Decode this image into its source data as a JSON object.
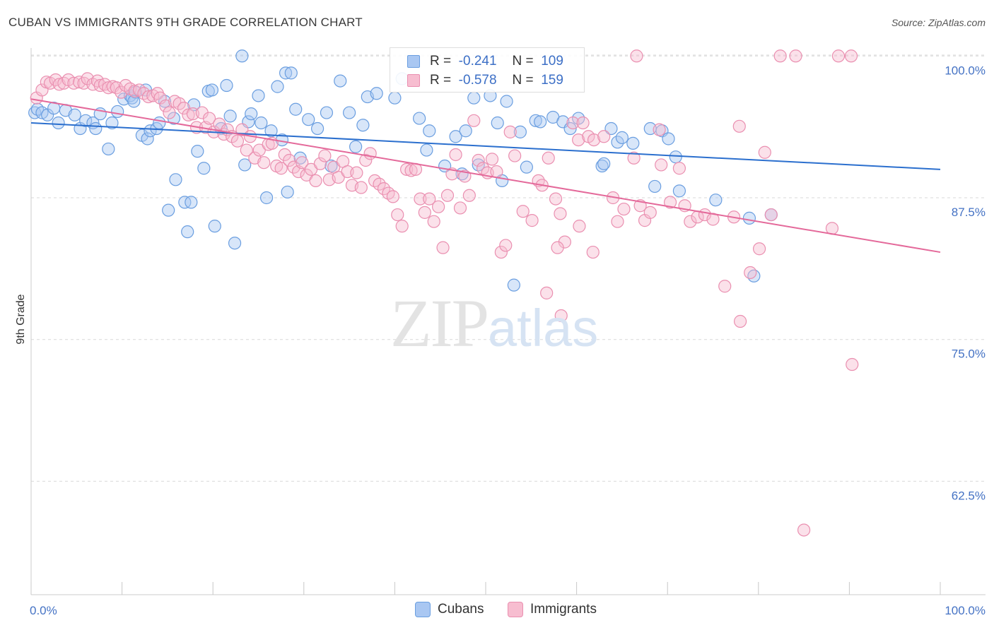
{
  "header": {
    "title": "CUBAN VS IMMIGRANTS 9TH GRADE CORRELATION CHART",
    "source": "Source: ZipAtlas.com"
  },
  "watermark": {
    "zip": "ZIP",
    "atlas": "atlas"
  },
  "legend_top": {
    "rows": [
      {
        "r_label": "R =",
        "r_value": "-0.241",
        "n_label": "N =",
        "n_value": "109"
      },
      {
        "r_label": "R =",
        "r_value": "-0.578",
        "n_label": "N =",
        "n_value": "159"
      }
    ]
  },
  "legend_bottom": {
    "items": [
      {
        "label": "Cubans"
      },
      {
        "label": "Immigrants"
      }
    ]
  },
  "colors": {
    "cubans_fill": "#a9c7f2",
    "cubans_stroke": "#6a9ee0",
    "cubans_line": "#2b6fce",
    "immigrants_fill": "#f7bdd0",
    "immigrants_stroke": "#ea8fb0",
    "immigrants_line": "#e4699a",
    "grid": "#d9d9d9",
    "tick_text": "#4472c4"
  },
  "chart_data": {
    "type": "scatter",
    "title": "CUBAN VS IMMIGRANTS 9TH GRADE CORRELATION CHART",
    "xlabel": "",
    "ylabel": "9th Grade",
    "xlim": [
      0,
      100
    ],
    "ylim": [
      52.5,
      101.2
    ],
    "x_tick_labels": [
      "0.0%",
      "100.0%"
    ],
    "y_ticks": [
      62.5,
      75.0,
      87.5,
      100.0
    ],
    "y_tick_labels": [
      "62.5%",
      "75.0%",
      "87.5%",
      "100.0%"
    ],
    "grid": true,
    "legend_position": "top-center",
    "series": [
      {
        "name": "Cubans",
        "r": -0.241,
        "n": 109,
        "trend": {
          "x": [
            0,
            100
          ],
          "y": [
            94.1,
            90.0
          ]
        },
        "points": [
          [
            0.4,
            95.0
          ],
          [
            0.7,
            95.3
          ],
          [
            1.2,
            95.0
          ],
          [
            1.8,
            94.8
          ],
          [
            2.5,
            95.4
          ],
          [
            3.0,
            94.1
          ],
          [
            3.8,
            95.2
          ],
          [
            4.8,
            94.8
          ],
          [
            5.4,
            93.6
          ],
          [
            6.0,
            94.3
          ],
          [
            6.8,
            94.1
          ],
          [
            7.1,
            93.6
          ],
          [
            7.6,
            94.9
          ],
          [
            8.5,
            91.8
          ],
          [
            8.9,
            94.1
          ],
          [
            9.5,
            95.1
          ],
          [
            10.2,
            96.2
          ],
          [
            10.9,
            96.5
          ],
          [
            11.1,
            96.3
          ],
          [
            11.5,
            96.8
          ],
          [
            11.3,
            96.0
          ],
          [
            12.2,
            93.0
          ],
          [
            12.6,
            97.0
          ],
          [
            12.8,
            92.7
          ],
          [
            13.1,
            93.4
          ],
          [
            13.8,
            93.6
          ],
          [
            14.1,
            94.1
          ],
          [
            14.7,
            96.0
          ],
          [
            15.1,
            86.4
          ],
          [
            15.7,
            94.5
          ],
          [
            15.9,
            89.1
          ],
          [
            16.9,
            87.1
          ],
          [
            17.2,
            84.5
          ],
          [
            17.6,
            87.1
          ],
          [
            17.9,
            95.7
          ],
          [
            18.3,
            91.6
          ],
          [
            19.0,
            90.1
          ],
          [
            19.5,
            96.9
          ],
          [
            19.9,
            97.0
          ],
          [
            20.2,
            85.0
          ],
          [
            20.9,
            93.6
          ],
          [
            21.5,
            97.4
          ],
          [
            21.9,
            94.7
          ],
          [
            22.4,
            83.5
          ],
          [
            23.2,
            100.0
          ],
          [
            23.5,
            90.4
          ],
          [
            23.9,
            94.2
          ],
          [
            24.2,
            94.9
          ],
          [
            25.0,
            96.5
          ],
          [
            25.3,
            94.1
          ],
          [
            25.9,
            87.5
          ],
          [
            26.4,
            93.4
          ],
          [
            27.1,
            97.3
          ],
          [
            27.6,
            92.6
          ],
          [
            28.0,
            98.5
          ],
          [
            28.2,
            88.0
          ],
          [
            28.6,
            98.5
          ],
          [
            29.1,
            95.3
          ],
          [
            29.6,
            91.0
          ],
          [
            30.5,
            94.4
          ],
          [
            31.5,
            93.6
          ],
          [
            32.5,
            95.0
          ],
          [
            33.0,
            90.3
          ],
          [
            34.0,
            97.8
          ],
          [
            35.0,
            95.0
          ],
          [
            35.7,
            92.0
          ],
          [
            36.5,
            93.9
          ],
          [
            37.0,
            96.4
          ],
          [
            38.0,
            96.7
          ],
          [
            40.0,
            96.3
          ],
          [
            40.8,
            98.0
          ],
          [
            42.7,
            94.5
          ],
          [
            43.5,
            91.7
          ],
          [
            43.8,
            93.4
          ],
          [
            45.5,
            90.3
          ],
          [
            46.7,
            92.9
          ],
          [
            47.4,
            89.6
          ],
          [
            47.8,
            93.4
          ],
          [
            48.7,
            96.3
          ],
          [
            49.2,
            90.4
          ],
          [
            50.5,
            96.5
          ],
          [
            51.3,
            94.1
          ],
          [
            51.8,
            89.0
          ],
          [
            52.3,
            96.0
          ],
          [
            53.1,
            79.8
          ],
          [
            53.8,
            93.3
          ],
          [
            54.5,
            90.2
          ],
          [
            55.5,
            94.3
          ],
          [
            56.0,
            94.2
          ],
          [
            57.4,
            94.6
          ],
          [
            58.5,
            94.2
          ],
          [
            59.3,
            93.6
          ],
          [
            60.2,
            94.5
          ],
          [
            62.8,
            90.3
          ],
          [
            63.0,
            90.5
          ],
          [
            63.8,
            93.6
          ],
          [
            64.5,
            92.4
          ],
          [
            65.0,
            92.8
          ],
          [
            66.2,
            92.3
          ],
          [
            68.1,
            93.6
          ],
          [
            68.6,
            88.5
          ],
          [
            69.4,
            93.4
          ],
          [
            70.1,
            92.7
          ],
          [
            70.9,
            91.1
          ],
          [
            71.3,
            88.1
          ],
          [
            75.3,
            87.3
          ],
          [
            79.0,
            85.7
          ],
          [
            79.5,
            80.6
          ],
          [
            81.4,
            86.0
          ]
        ]
      },
      {
        "name": "Immigrants",
        "r": -0.578,
        "n": 159,
        "trend": {
          "x": [
            0,
            100
          ],
          "y": [
            96.2,
            82.7
          ]
        },
        "points": [
          [
            0.6,
            96.3
          ],
          [
            1.2,
            97.0
          ],
          [
            1.7,
            97.7
          ],
          [
            2.1,
            97.6
          ],
          [
            2.7,
            97.9
          ],
          [
            3.1,
            97.5
          ],
          [
            3.6,
            97.6
          ],
          [
            4.1,
            97.9
          ],
          [
            4.7,
            97.6
          ],
          [
            5.3,
            97.7
          ],
          [
            5.8,
            97.6
          ],
          [
            6.2,
            98.0
          ],
          [
            6.8,
            97.5
          ],
          [
            7.3,
            97.8
          ],
          [
            7.6,
            97.4
          ],
          [
            8.1,
            97.5
          ],
          [
            8.5,
            97.2
          ],
          [
            9.0,
            97.3
          ],
          [
            9.4,
            97.2
          ],
          [
            9.9,
            96.8
          ],
          [
            10.4,
            97.4
          ],
          [
            10.9,
            97.1
          ],
          [
            11.4,
            96.9
          ],
          [
            11.9,
            97.0
          ],
          [
            12.4,
            96.7
          ],
          [
            12.9,
            96.4
          ],
          [
            13.4,
            96.5
          ],
          [
            13.9,
            96.7
          ],
          [
            14.2,
            96.3
          ],
          [
            14.8,
            95.6
          ],
          [
            15.2,
            95.0
          ],
          [
            15.8,
            96.0
          ],
          [
            16.3,
            95.8
          ],
          [
            16.8,
            95.4
          ],
          [
            17.3,
            94.8
          ],
          [
            17.8,
            94.9
          ],
          [
            18.2,
            93.7
          ],
          [
            18.8,
            95.0
          ],
          [
            19.2,
            93.7
          ],
          [
            19.6,
            94.5
          ],
          [
            20.1,
            93.3
          ],
          [
            20.7,
            94.0
          ],
          [
            21.2,
            93.1
          ],
          [
            21.6,
            93.5
          ],
          [
            22.1,
            92.9
          ],
          [
            22.7,
            92.5
          ],
          [
            23.2,
            93.5
          ],
          [
            23.7,
            91.7
          ],
          [
            24.1,
            92.9
          ],
          [
            24.6,
            91.0
          ],
          [
            25.1,
            91.7
          ],
          [
            25.6,
            90.6
          ],
          [
            26.1,
            92.2
          ],
          [
            26.5,
            92.3
          ],
          [
            27.0,
            90.3
          ],
          [
            27.5,
            90.1
          ],
          [
            27.9,
            91.3
          ],
          [
            28.4,
            90.8
          ],
          [
            28.9,
            90.2
          ],
          [
            29.4,
            89.8
          ],
          [
            29.8,
            90.6
          ],
          [
            30.3,
            89.5
          ],
          [
            30.8,
            90.0
          ],
          [
            31.3,
            89.0
          ],
          [
            31.8,
            90.5
          ],
          [
            32.3,
            91.2
          ],
          [
            32.8,
            89.1
          ],
          [
            33.3,
            90.2
          ],
          [
            33.8,
            89.3
          ],
          [
            34.3,
            90.7
          ],
          [
            34.8,
            89.8
          ],
          [
            35.3,
            88.6
          ],
          [
            35.8,
            89.7
          ],
          [
            36.3,
            88.4
          ],
          [
            36.8,
            90.8
          ],
          [
            37.3,
            91.4
          ],
          [
            37.8,
            89.0
          ],
          [
            38.3,
            88.7
          ],
          [
            38.8,
            88.3
          ],
          [
            39.3,
            87.9
          ],
          [
            39.8,
            87.6
          ],
          [
            40.3,
            86.0
          ],
          [
            40.8,
            85.0
          ],
          [
            41.3,
            90.0
          ],
          [
            41.8,
            89.9
          ],
          [
            42.3,
            90.0
          ],
          [
            42.8,
            87.4
          ],
          [
            43.3,
            86.2
          ],
          [
            43.8,
            87.4
          ],
          [
            44.3,
            85.4
          ],
          [
            44.8,
            86.7
          ],
          [
            45.3,
            83.1
          ],
          [
            45.8,
            87.7
          ],
          [
            46.3,
            89.6
          ],
          [
            46.7,
            91.3
          ],
          [
            47.2,
            86.6
          ],
          [
            47.7,
            89.4
          ],
          [
            48.2,
            87.7
          ],
          [
            48.7,
            94.3
          ],
          [
            49.2,
            90.8
          ],
          [
            49.7,
            90.1
          ],
          [
            50.2,
            89.7
          ],
          [
            50.7,
            90.9
          ],
          [
            51.2,
            89.8
          ],
          [
            51.7,
            82.7
          ],
          [
            52.2,
            83.3
          ],
          [
            52.7,
            93.3
          ],
          [
            53.2,
            91.2
          ],
          [
            54.1,
            86.3
          ],
          [
            55.1,
            85.5
          ],
          [
            55.8,
            89.0
          ],
          [
            56.2,
            88.6
          ],
          [
            56.7,
            79.1
          ],
          [
            57.7,
            87.4
          ],
          [
            58.2,
            86.1
          ],
          [
            58.7,
            83.6
          ],
          [
            59.6,
            94.1
          ],
          [
            60.2,
            92.6
          ],
          [
            60.7,
            94.1
          ],
          [
            61.3,
            92.9
          ],
          [
            61.9,
            92.6
          ],
          [
            63.0,
            92.9
          ],
          [
            64.0,
            87.5
          ],
          [
            64.5,
            85.4
          ],
          [
            65.2,
            86.5
          ],
          [
            66.3,
            91.0
          ],
          [
            67.0,
            86.8
          ],
          [
            67.5,
            85.5
          ],
          [
            68.1,
            86.2
          ],
          [
            69.1,
            93.5
          ],
          [
            69.3,
            90.4
          ],
          [
            70.3,
            87.1
          ],
          [
            71.3,
            90.1
          ],
          [
            71.9,
            86.8
          ],
          [
            72.5,
            85.4
          ],
          [
            73.3,
            85.8
          ],
          [
            74.1,
            86.0
          ],
          [
            75.0,
            85.6
          ],
          [
            76.3,
            79.7
          ],
          [
            77.3,
            85.8
          ],
          [
            78.0,
            76.6
          ],
          [
            79.1,
            80.9
          ],
          [
            80.1,
            83.0
          ],
          [
            80.7,
            91.5
          ],
          [
            81.4,
            86.0
          ],
          [
            82.4,
            100.0
          ],
          [
            84.1,
            100.0
          ],
          [
            88.1,
            84.8
          ],
          [
            88.8,
            100.0
          ],
          [
            90.3,
            72.8
          ],
          [
            85.0,
            58.2
          ],
          [
            66.6,
            100.0
          ],
          [
            90.2,
            100.0
          ],
          [
            77.9,
            93.8
          ],
          [
            56.9,
            91.0
          ],
          [
            57.9,
            83.1
          ],
          [
            60.3,
            85.0
          ],
          [
            61.8,
            82.7
          ],
          [
            58.3,
            77.1
          ]
        ]
      }
    ]
  }
}
